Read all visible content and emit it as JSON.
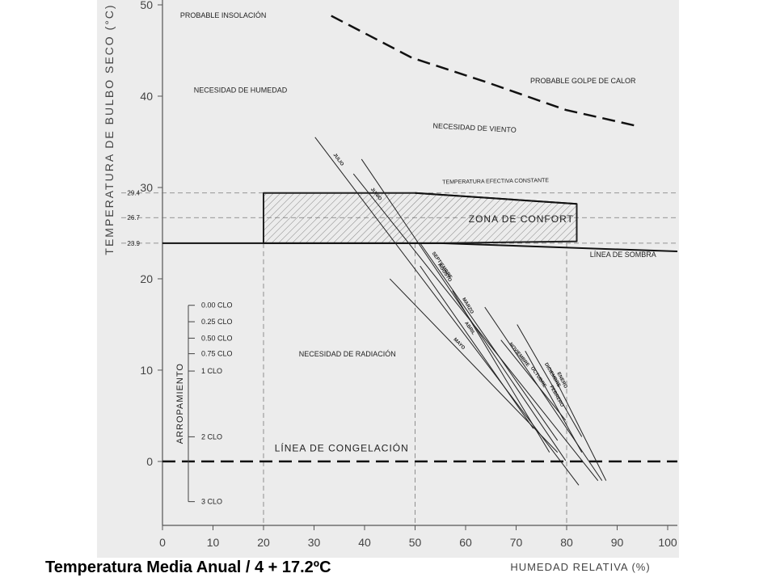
{
  "chart_data": {
    "type": "bioclimatic",
    "ylabel": "TEMPERATURA DE BULBO SECO (°C)",
    "xlabel": "HUMEDAD RELATIVA (%)",
    "footer": "Temperatura Media Anual / 4 + 17.2ºC",
    "xlim": [
      0,
      100
    ],
    "ylim": [
      -7,
      50
    ],
    "xticks": [
      0,
      10,
      20,
      30,
      40,
      50,
      60,
      70,
      80,
      90,
      100
    ],
    "yticks": [
      0,
      10,
      20,
      30,
      40,
      50
    ],
    "ref_levels": [
      29.4,
      26.7,
      23.9
    ],
    "ref_humidities": [
      20,
      50,
      80
    ],
    "comfort_zone": {
      "name": "ZONA DE CONFORT",
      "x": [
        20,
        50,
        82,
        82,
        55,
        20
      ],
      "values": [
        29.4,
        29.4,
        28.2,
        24.1,
        23.9,
        23.9
      ]
    },
    "series": [
      {
        "name": "LÍNEA DE SOMBRA",
        "style": "solid",
        "x": [
          0,
          55,
          102
        ],
        "values": [
          23.9,
          23.9,
          23.0
        ]
      },
      {
        "name": "LÍNEA DE CONGELACIÓN",
        "style": "dashed",
        "x": [
          0,
          102
        ],
        "values": [
          0,
          0
        ]
      },
      {
        "name": "PROBABLE GOLPE DE CALOR",
        "style": "dashed",
        "x": [
          33.4,
          49.4,
          63.8,
          79.8,
          94.2
        ],
        "values": [
          48.8,
          44.2,
          41.6,
          38.5,
          36.7
        ]
      },
      {
        "name": "TEMPERATURA EFECTIVA CONSTANTE",
        "style": "solid",
        "x": [
          50,
          82
        ],
        "values": [
          29.4,
          28.2
        ]
      }
    ],
    "months": [
      {
        "name": "JULIO",
        "x": [
          30.2,
          82.4
        ],
        "values": [
          35.5,
          -2.6
        ]
      },
      {
        "name": "AGOSTO",
        "x": [
          39.4,
          79.8
        ],
        "values": [
          33.1,
          0.1
        ]
      },
      {
        "name": "JUNIO",
        "x": [
          37.8,
          86.2
        ],
        "values": [
          31.5,
          -2.1
        ]
      },
      {
        "name": "MAYO",
        "x": [
          45,
          78.2
        ],
        "values": [
          20,
          1
        ]
      },
      {
        "name": "SEPTIEMBRE",
        "x": [
          51,
          78.2
        ],
        "values": [
          23.9,
          2.3
        ]
      },
      {
        "name": "OCTUBRE",
        "x": [
          63.8,
          87
        ],
        "values": [
          16.9,
          -2.1
        ]
      },
      {
        "name": "NOVIEMBRE",
        "x": [
          67,
          79.8
        ],
        "values": [
          13.3,
          4.5
        ]
      },
      {
        "name": "DICIEMBRE",
        "x": [
          70.2,
          83
        ],
        "values": [
          15,
          2.7
        ]
      },
      {
        "name": "ENERO",
        "x": [
          76.6,
          87.8
        ],
        "values": [
          10.3,
          -2.1
        ]
      },
      {
        "name": "FEBRERO",
        "x": [
          71.8,
          83
        ],
        "values": [
          12.1,
          1
        ]
      },
      {
        "name": "MARZO",
        "x": [
          57.4,
          76.6
        ],
        "values": [
          18.7,
          1
        ]
      },
      {
        "name": "ABRIL",
        "x": [
          51,
          73.4
        ],
        "values": [
          21.4,
          3.6
        ]
      }
    ],
    "annotations": [
      "PROBABLE INSOLACIÓN",
      "NECESIDAD DE HUMEDAD",
      "NECESIDAD DE VIENTO",
      "NECESIDAD DE RADIACIÓN"
    ],
    "clo_scale": {
      "title": "ARROPAMIENTO",
      "ticks": [
        {
          "label": "0.00 CLO",
          "y": 17.1
        },
        {
          "label": "0.25 CLO",
          "y": 15.3
        },
        {
          "label": "0.50 CLO",
          "y": 13.5
        },
        {
          "label": "0.75 CLO",
          "y": 11.8
        },
        {
          "label": "1 CLO",
          "y": 9.9
        },
        {
          "label": "2 CLO",
          "y": 2.7
        },
        {
          "label": "3 CLO",
          "y": -4.4
        }
      ]
    }
  }
}
